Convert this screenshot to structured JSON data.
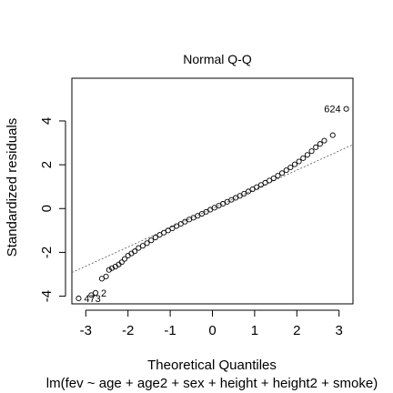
{
  "chart_data": {
    "type": "scatter",
    "title": "Normal Q-Q",
    "xlabel": "Theoretical Quantiles",
    "ylabel": "Standardized residuals",
    "subtitle": "lm(fev ~ age + age2 + sex + height + height2 + smoke)",
    "xlim": [
      -3.33,
      3.33
    ],
    "ylim": [
      -4.35,
      5.95
    ],
    "xticks": [
      -3,
      -2,
      -1,
      0,
      1,
      2,
      3
    ],
    "xtick_labels": [
      "-3",
      "-2",
      "-1",
      "0",
      "1",
      "2",
      "3"
    ],
    "yticks": [
      -4,
      -2,
      0,
      2,
      4
    ],
    "ytick_labels": [
      "-4",
      "-2",
      "0",
      "2",
      "4"
    ],
    "grid": false,
    "reference_line": {
      "x": [
        -3.33,
        3.33
      ],
      "y": [
        -2.92,
        2.92
      ]
    },
    "points": [
      {
        "x": -3.17,
        "y": -4.1
      },
      {
        "x": -2.87,
        "y": -3.95
      },
      {
        "x": -2.77,
        "y": -3.85
      },
      {
        "x": -2.62,
        "y": -3.2
      },
      {
        "x": -2.52,
        "y": -3.1
      },
      {
        "x": -2.45,
        "y": -2.8
      },
      {
        "x": -2.38,
        "y": -2.72
      },
      {
        "x": -2.3,
        "y": -2.65
      },
      {
        "x": -2.22,
        "y": -2.55
      },
      {
        "x": -2.15,
        "y": -2.45
      },
      {
        "x": -2.08,
        "y": -2.3
      },
      {
        "x": -2.0,
        "y": -2.15
      },
      {
        "x": -1.92,
        "y": -2.05
      },
      {
        "x": -1.84,
        "y": -1.95
      },
      {
        "x": -1.75,
        "y": -1.8
      },
      {
        "x": -1.65,
        "y": -1.7
      },
      {
        "x": -1.55,
        "y": -1.58
      },
      {
        "x": -1.45,
        "y": -1.45
      },
      {
        "x": -1.35,
        "y": -1.32
      },
      {
        "x": -1.25,
        "y": -1.2
      },
      {
        "x": -1.15,
        "y": -1.1
      },
      {
        "x": -1.05,
        "y": -1.0
      },
      {
        "x": -0.95,
        "y": -0.9
      },
      {
        "x": -0.85,
        "y": -0.8
      },
      {
        "x": -0.75,
        "y": -0.7
      },
      {
        "x": -0.65,
        "y": -0.6
      },
      {
        "x": -0.55,
        "y": -0.5
      },
      {
        "x": -0.45,
        "y": -0.42
      },
      {
        "x": -0.35,
        "y": -0.33
      },
      {
        "x": -0.25,
        "y": -0.24
      },
      {
        "x": -0.15,
        "y": -0.15
      },
      {
        "x": -0.05,
        "y": -0.05
      },
      {
        "x": 0.05,
        "y": 0.04
      },
      {
        "x": 0.15,
        "y": 0.13
      },
      {
        "x": 0.25,
        "y": 0.22
      },
      {
        "x": 0.35,
        "y": 0.31
      },
      {
        "x": 0.45,
        "y": 0.4
      },
      {
        "x": 0.55,
        "y": 0.49
      },
      {
        "x": 0.65,
        "y": 0.58
      },
      {
        "x": 0.75,
        "y": 0.68
      },
      {
        "x": 0.85,
        "y": 0.78
      },
      {
        "x": 0.95,
        "y": 0.88
      },
      {
        "x": 1.05,
        "y": 0.98
      },
      {
        "x": 1.15,
        "y": 1.08
      },
      {
        "x": 1.25,
        "y": 1.18
      },
      {
        "x": 1.35,
        "y": 1.28
      },
      {
        "x": 1.45,
        "y": 1.38
      },
      {
        "x": 1.55,
        "y": 1.5
      },
      {
        "x": 1.65,
        "y": 1.62
      },
      {
        "x": 1.75,
        "y": 1.75
      },
      {
        "x": 1.85,
        "y": 1.88
      },
      {
        "x": 1.95,
        "y": 2.02
      },
      {
        "x": 2.05,
        "y": 2.15
      },
      {
        "x": 2.15,
        "y": 2.3
      },
      {
        "x": 2.25,
        "y": 2.45
      },
      {
        "x": 2.35,
        "y": 2.62
      },
      {
        "x": 2.45,
        "y": 2.8
      },
      {
        "x": 2.55,
        "y": 2.95
      },
      {
        "x": 2.65,
        "y": 3.1
      },
      {
        "x": 2.85,
        "y": 3.35
      },
      {
        "x": 3.17,
        "y": 4.55
      }
    ],
    "point_labels": [
      {
        "text": "624",
        "x": 3.17,
        "y": 4.55,
        "side": "left"
      },
      {
        "text": "2",
        "x": -2.77,
        "y": -3.85,
        "side": "right"
      },
      {
        "text": "473",
        "x": -3.17,
        "y": -4.1,
        "side": "right"
      }
    ]
  }
}
